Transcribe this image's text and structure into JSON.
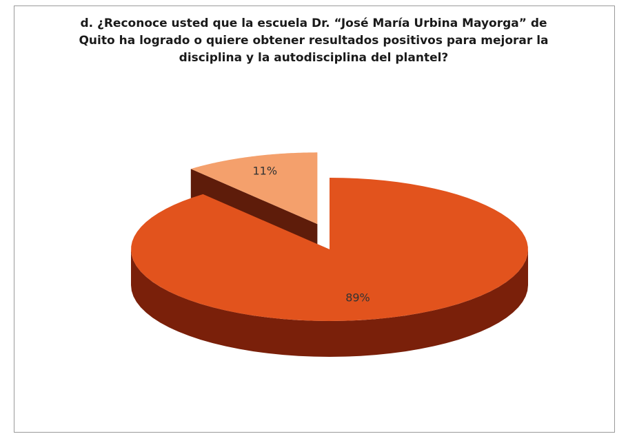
{
  "chart_data": {
    "type": "pie",
    "title": "d. ¿Reconoce usted que la escuela Dr. “José María Urbina Mayorga” de Quito ha logrado o quiere obtener resultados positivos para mejorar la disciplina y la autodisciplina del plantel?",
    "values": [
      89,
      11
    ],
    "value_labels": [
      "89%",
      "11%"
    ],
    "colors": [
      "#e2531d",
      "#f4a06c"
    ],
    "side_colors": [
      "#7a200a",
      "#5e1c0a"
    ]
  }
}
